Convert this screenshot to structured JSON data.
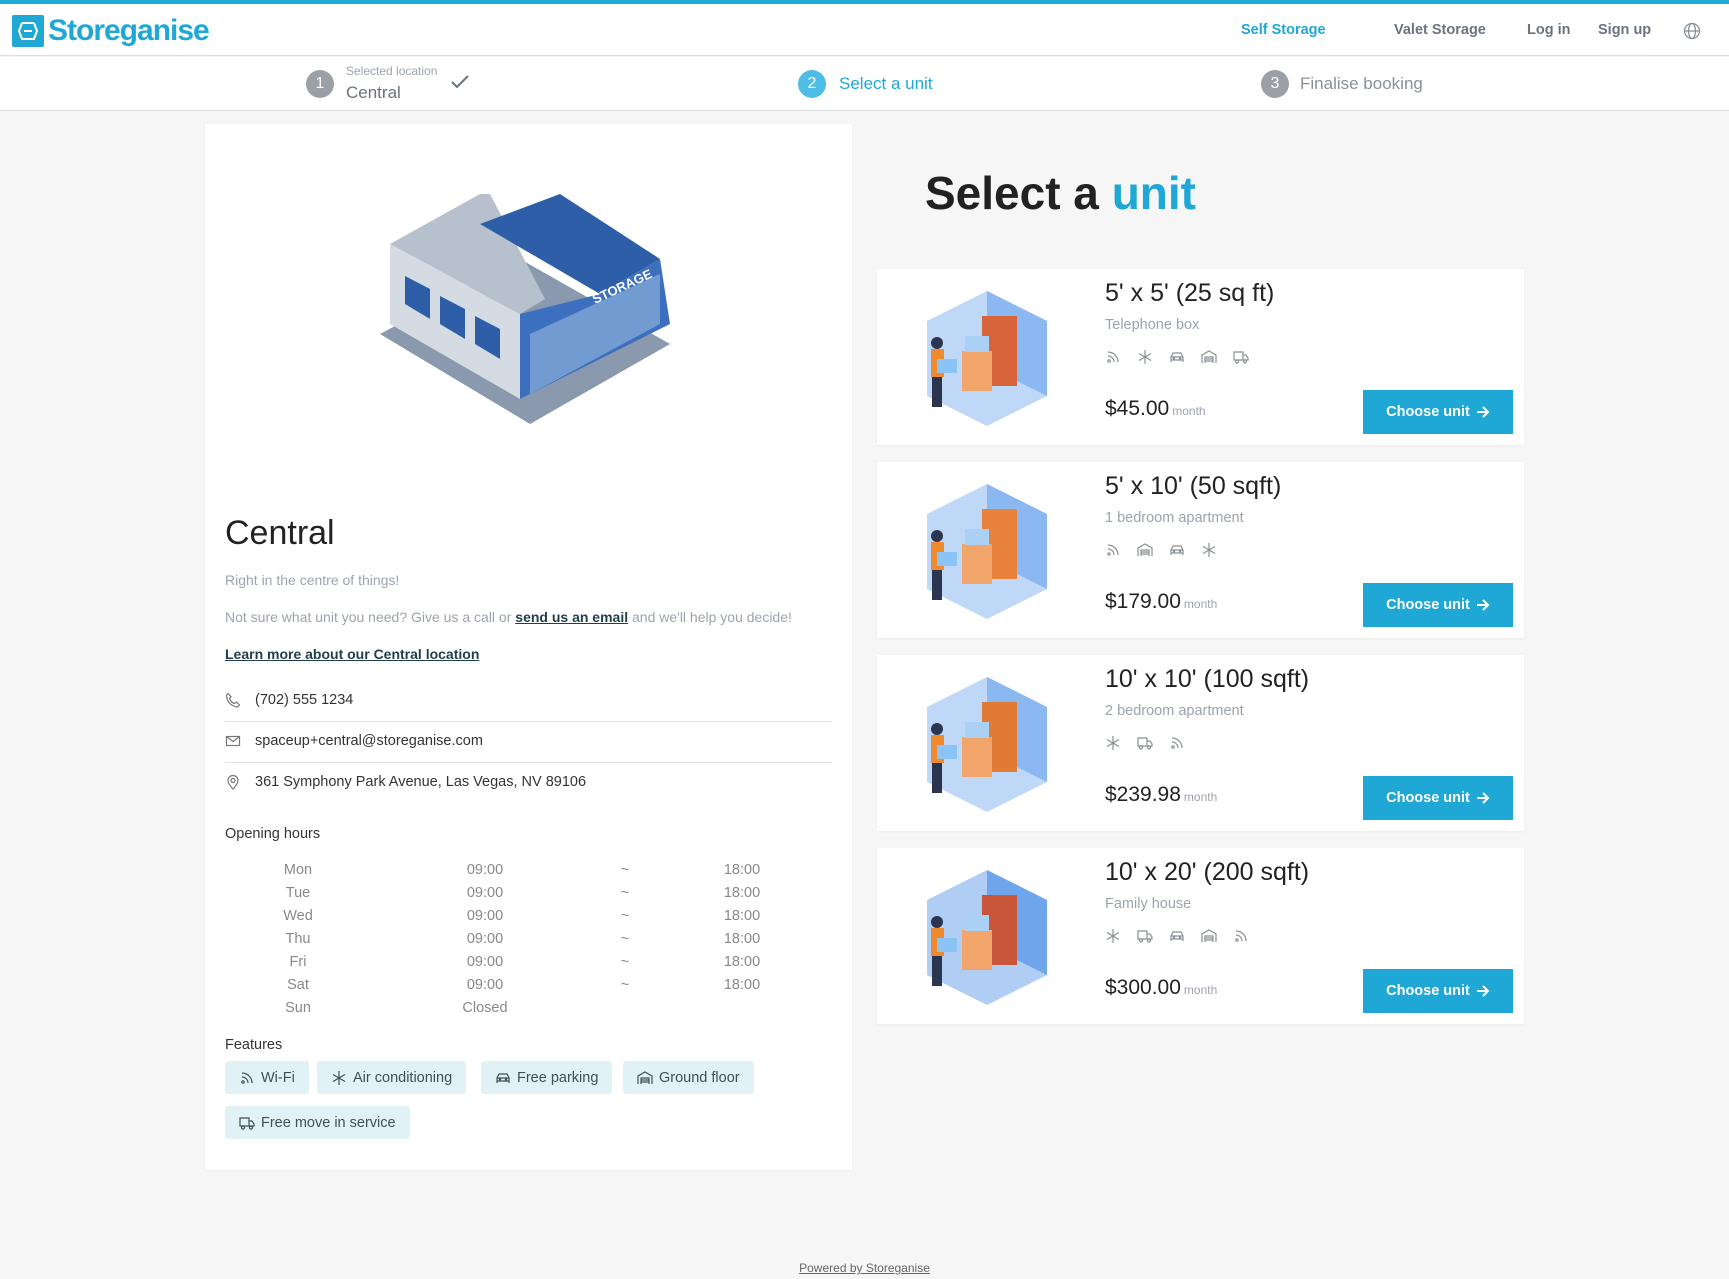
{
  "brand": {
    "name": "Storeganise",
    "accent": "#1fa7d6"
  },
  "nav": {
    "self_storage": "Self Storage",
    "valet_storage": "Valet Storage",
    "login": "Log in",
    "signup": "Sign up",
    "language_icon": "globe-icon"
  },
  "steps": [
    {
      "number": "1",
      "caption": "Selected location",
      "label": "Central",
      "done": true
    },
    {
      "number": "2",
      "label": "Select a unit",
      "active": true
    },
    {
      "number": "3",
      "label": "Finalise booking"
    }
  ],
  "location": {
    "name": "Central",
    "tagline": "Right in the centre of things!",
    "help_prefix": "Not sure what unit you need? Give us a call or ",
    "help_link": "send us an email",
    "help_suffix": " and we'll help you decide!",
    "learn_more": "Learn more about our Central location",
    "phone": "(702) 555 1234",
    "email": "spaceup+central@storeganise.com",
    "address": "361 Symphony Park Avenue, Las Vegas, NV 89106",
    "hours_title": "Opening hours",
    "hours": [
      {
        "day": "Mon",
        "open": "09:00",
        "sep": "~",
        "close": "18:00"
      },
      {
        "day": "Tue",
        "open": "09:00",
        "sep": "~",
        "close": "18:00"
      },
      {
        "day": "Wed",
        "open": "09:00",
        "sep": "~",
        "close": "18:00"
      },
      {
        "day": "Thu",
        "open": "09:00",
        "sep": "~",
        "close": "18:00"
      },
      {
        "day": "Fri",
        "open": "09:00",
        "sep": "~",
        "close": "18:00"
      },
      {
        "day": "Sat",
        "open": "09:00",
        "sep": "~",
        "close": "18:00"
      },
      {
        "day": "Sun",
        "open": "Closed",
        "sep": "",
        "close": ""
      }
    ],
    "features_title": "Features",
    "features": [
      {
        "icon": "wifi-icon",
        "label": "Wi-Fi"
      },
      {
        "icon": "snowflake-icon",
        "label": "Air conditioning"
      },
      {
        "icon": "car-icon",
        "label": "Free parking"
      },
      {
        "icon": "garage-icon",
        "label": "Ground floor"
      },
      {
        "icon": "truck-icon",
        "label": "Free move in service"
      }
    ]
  },
  "main": {
    "title_prefix": "Select a ",
    "title_accent": "unit",
    "units": [
      {
        "title": "5' x 5' (25 sq ft)",
        "subtitle": "Telephone box",
        "price": "$45.00",
        "period": "month",
        "icons": [
          "wifi-icon",
          "snowflake-icon",
          "car-icon",
          "garage-icon",
          "truck-icon"
        ],
        "button": "Choose unit"
      },
      {
        "title": "5' x 10' (50 sqft)",
        "subtitle": "1 bedroom apartment",
        "price": "$179.00",
        "period": "month",
        "icons": [
          "wifi-icon",
          "garage-icon",
          "car-icon",
          "snowflake-icon"
        ],
        "button": "Choose unit"
      },
      {
        "title": "10' x 10' (100 sqft)",
        "subtitle": "2 bedroom apartment",
        "price": "$239.98",
        "period": "month",
        "icons": [
          "snowflake-icon",
          "truck-icon",
          "wifi-icon"
        ],
        "button": "Choose unit"
      },
      {
        "title": "10' x 20' (200 sqft)",
        "subtitle": "Family house",
        "price": "$300.00",
        "period": "month",
        "icons": [
          "snowflake-icon",
          "truck-icon",
          "car-icon",
          "garage-icon",
          "wifi-icon"
        ],
        "button": "Choose unit"
      }
    ]
  },
  "footer": {
    "powered_by": "Powered by Storeganise"
  }
}
